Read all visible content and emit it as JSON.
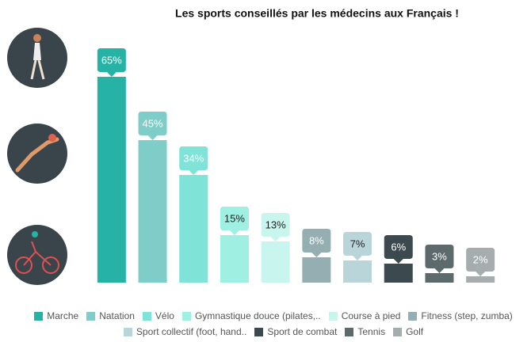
{
  "chart_data": {
    "type": "bar",
    "title": "Les sports conseillés par les médecins aux Français !",
    "categories": [
      "Marche",
      "Natation",
      "Vélo",
      "Gymnastique douce (pilates,..",
      "Course à pied",
      "Fitness (step, zumba)",
      "Sport collectif (foot, hand..",
      "Sport de combat",
      "Tennis",
      "Golf"
    ],
    "values": [
      65,
      45,
      34,
      15,
      13,
      8,
      7,
      6,
      3,
      2
    ],
    "value_labels": [
      "65%",
      "45%",
      "34%",
      "15%",
      "13%",
      "8%",
      "7%",
      "6%",
      "3%",
      "2%"
    ],
    "colors": [
      "#26b3a6",
      "#7ecdc9",
      "#7fe3d8",
      "#a0efe3",
      "#c8f5ee",
      "#94aeb2",
      "#b9d5da",
      "#3c4a50",
      "#5c6a6c",
      "#a6adae"
    ]
  }
}
